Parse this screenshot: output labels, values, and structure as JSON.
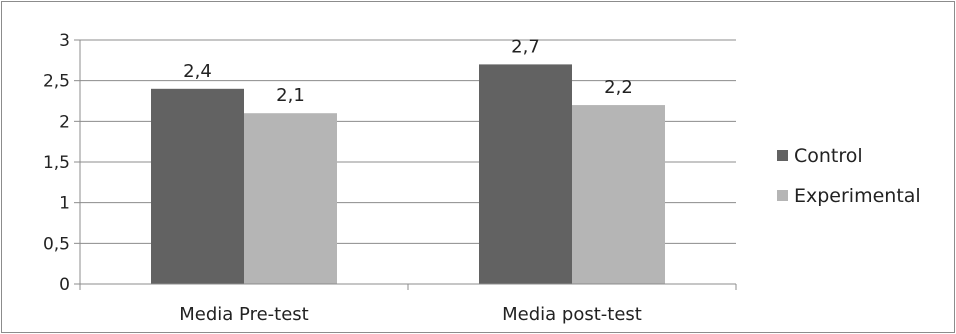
{
  "chart_data": {
    "type": "bar",
    "title": "",
    "xlabel": "",
    "ylabel": "",
    "categories": [
      "Media Pre-test",
      "Media post-test"
    ],
    "series": [
      {
        "name": "Control",
        "values": [
          2.4,
          2.7
        ],
        "labels": [
          "2,4",
          "2,7"
        ],
        "color": "#626262"
      },
      {
        "name": "Experimental",
        "values": [
          2.1,
          2.2
        ],
        "labels": [
          "2,1",
          "2,2"
        ],
        "color": "#b5b5b5"
      }
    ],
    "ylim": [
      0,
      3
    ],
    "yticks": [
      0,
      0.5,
      1,
      1.5,
      2,
      2.5,
      3
    ],
    "ytick_labels": [
      "0",
      "0,5",
      "1",
      "1,5",
      "2",
      "2,5",
      "3"
    ],
    "grid": true,
    "legend": "right"
  }
}
